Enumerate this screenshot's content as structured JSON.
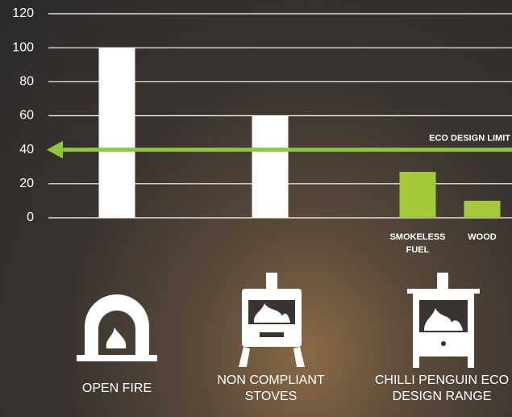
{
  "chart_data": {
    "type": "bar",
    "categories": [
      null,
      null,
      "SMOKELESS FUEL",
      "WOOD"
    ],
    "values": [
      100,
      60,
      27,
      10
    ],
    "colors": [
      "#ffffff",
      "#ffffff",
      "#a5c93a",
      "#a5c93a"
    ],
    "ylim": [
      0,
      120
    ],
    "yticks": [
      0,
      20,
      40,
      60,
      80,
      100,
      120
    ],
    "grid": true,
    "limit": {
      "value": 40,
      "label": "ECO DESIGN LIMIT",
      "color": "#8dc63f"
    },
    "groups": [
      "OPEN FIRE",
      "NON COMPLIANT STOVES",
      "CHILLI PENGUIN ECO DESIGN RANGE"
    ]
  }
}
